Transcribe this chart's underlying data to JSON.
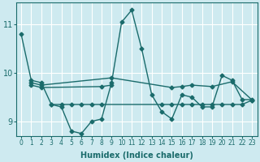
{
  "xlabel": "Humidex (Indice chaleur)",
  "background_color": "#ceeaf0",
  "grid_color": "#ffffff",
  "line_color": "#1a6b6b",
  "xlim": [
    -0.5,
    23.5
  ],
  "ylim": [
    8.7,
    11.45
  ],
  "yticks": [
    9,
    10,
    11
  ],
  "xticks": [
    0,
    1,
    2,
    3,
    4,
    5,
    6,
    7,
    8,
    9,
    10,
    11,
    12,
    13,
    14,
    15,
    16,
    17,
    18,
    19,
    20,
    21,
    22,
    23
  ],
  "series1_x": [
    0,
    1,
    2,
    3,
    4,
    5,
    6,
    7,
    8,
    9,
    10,
    11,
    12,
    13,
    14,
    15,
    16,
    17,
    18,
    19,
    20,
    21,
    22,
    23
  ],
  "series1_y": [
    10.8,
    9.85,
    9.8,
    9.35,
    9.3,
    8.8,
    8.75,
    9.0,
    9.05,
    9.8,
    11.05,
    11.3,
    10.5,
    9.55,
    9.2,
    9.05,
    9.55,
    9.5,
    9.3,
    9.3,
    9.95,
    9.85,
    9.45,
    9.45
  ],
  "series2_x": [
    1,
    2,
    9,
    15,
    16,
    17,
    19,
    21,
    23
  ],
  "series2_y": [
    9.8,
    9.75,
    9.9,
    9.7,
    9.72,
    9.75,
    9.72,
    9.82,
    9.44
  ],
  "series3_x": [
    3,
    4,
    5,
    6,
    7,
    8,
    14,
    15,
    16,
    17,
    18,
    19,
    20,
    21,
    22,
    23
  ],
  "series3_y": [
    9.35,
    9.35,
    9.35,
    9.35,
    9.35,
    9.35,
    9.35,
    9.35,
    9.35,
    9.35,
    9.35,
    9.35,
    9.35,
    9.35,
    9.35,
    9.44
  ],
  "series4_x": [
    1,
    2,
    8,
    9
  ],
  "series4_y": [
    9.75,
    9.7,
    9.72,
    9.75
  ],
  "marker": "D",
  "markersize": 2.5,
  "linewidth": 1.0
}
